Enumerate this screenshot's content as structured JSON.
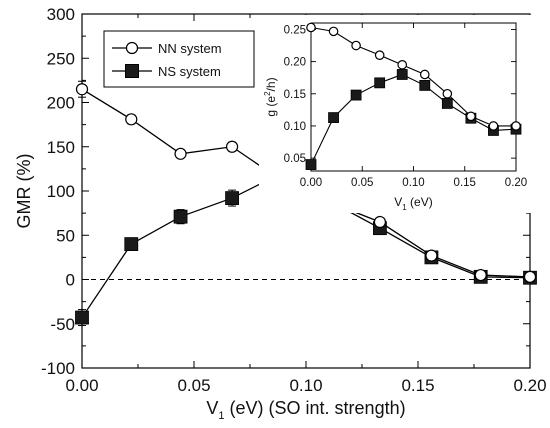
{
  "chart_data": [
    {
      "type": "line",
      "xlabel": "V_1 (eV) (SO int. strength)",
      "xlabel_parts": {
        "base": "V",
        "sub": "1",
        "rest": " (eV) (SO int. strength)"
      },
      "ylabel": "GMR (%)",
      "xlim": [
        0,
        0.2
      ],
      "ylim": [
        -100,
        300
      ],
      "xticks": [
        "0.00",
        "0.05",
        "0.10",
        "0.15",
        "0.20"
      ],
      "yticks": [
        "-100",
        "-50",
        "0",
        "50",
        "100",
        "150",
        "200",
        "250",
        "300"
      ],
      "reference_line": {
        "y": 0,
        "style": "dashed"
      },
      "legend_position": "top-left (inside)",
      "series": [
        {
          "name": "NN system",
          "marker": "open-circle",
          "x": [
            0.0,
            0.022,
            0.044,
            0.067,
            0.089,
            0.111,
            0.133,
            0.156,
            0.178,
            0.2
          ],
          "y": [
            215,
            181,
            142,
            150,
            112,
            87,
            65,
            27,
            5,
            3
          ],
          "err": [
            9,
            5,
            4,
            5,
            6,
            4,
            4,
            3,
            2,
            2
          ]
        },
        {
          "name": "NS system",
          "marker": "filled-square",
          "x": [
            0.0,
            0.022,
            0.044,
            0.067,
            0.089,
            0.111,
            0.133,
            0.156,
            0.178,
            0.2
          ],
          "y": [
            -43,
            40,
            71,
            92,
            120,
            88,
            58,
            25,
            3,
            2
          ],
          "err": [
            9,
            6,
            8,
            9,
            12,
            5,
            5,
            4,
            2,
            2
          ]
        }
      ]
    },
    {
      "type": "line",
      "xlabel": "V_1 (eV)",
      "xlabel_parts": {
        "base": "V",
        "sub": "1",
        "rest": " (eV)"
      },
      "ylabel": "g (e²/h)",
      "ylabel_parts": {
        "base": "g (e",
        "sup": "2",
        "rest": "/h)"
      },
      "xlim": [
        0,
        0.2
      ],
      "ylim": [
        0.03,
        0.26
      ],
      "xticks": [
        "0.00",
        "0.05",
        "0.10",
        "0.15",
        "0.20"
      ],
      "yticks": [
        "0.05",
        "0.10",
        "0.15",
        "0.20",
        "0.25"
      ],
      "series": [
        {
          "name": "NN system",
          "marker": "open-circle",
          "x": [
            0.0,
            0.022,
            0.044,
            0.067,
            0.089,
            0.111,
            0.133,
            0.156,
            0.178,
            0.2
          ],
          "y": [
            0.253,
            0.247,
            0.225,
            0.21,
            0.195,
            0.18,
            0.15,
            0.115,
            0.1,
            0.1
          ]
        },
        {
          "name": "NS system",
          "marker": "filled-square",
          "x": [
            0.0,
            0.022,
            0.044,
            0.067,
            0.089,
            0.111,
            0.133,
            0.156,
            0.178,
            0.2
          ],
          "y": [
            0.04,
            0.113,
            0.148,
            0.167,
            0.18,
            0.163,
            0.135,
            0.112,
            0.093,
            0.095
          ]
        }
      ]
    }
  ]
}
